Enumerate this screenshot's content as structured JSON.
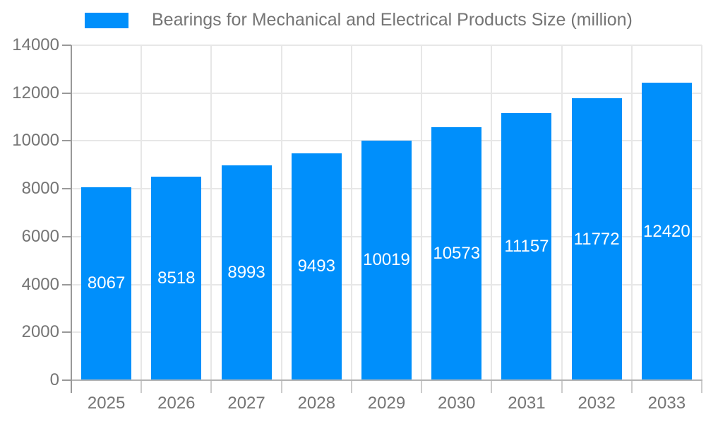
{
  "legend": {
    "position": "top"
  },
  "chart_data": {
    "type": "bar",
    "title": "Bearings for Mechanical and Electrical Products Size (million)",
    "series_name": "Bearings for Mechanical and Electrical Products Size (million)",
    "categories": [
      "2025",
      "2026",
      "2027",
      "2028",
      "2029",
      "2030",
      "2031",
      "2032",
      "2033"
    ],
    "values": [
      8067,
      8518,
      8993,
      9493,
      10019,
      10573,
      11157,
      11772,
      12420
    ],
    "xlabel": "",
    "ylabel": "",
    "ylim": [
      0,
      14000
    ],
    "yticks": [
      0,
      2000,
      4000,
      6000,
      8000,
      10000,
      12000,
      14000
    ],
    "grid": true,
    "legend_position": "top",
    "value_labels": "inside-center"
  },
  "colors": {
    "bar": "#008FFB",
    "bar_label": "#ffffff",
    "grid": "#e7e7e7",
    "axis_label": "#757575",
    "x_axis_line": "#b3b3b3",
    "y_axis_line": "#999999",
    "x_tick": "#cccccc",
    "legend_text": "#757575"
  }
}
